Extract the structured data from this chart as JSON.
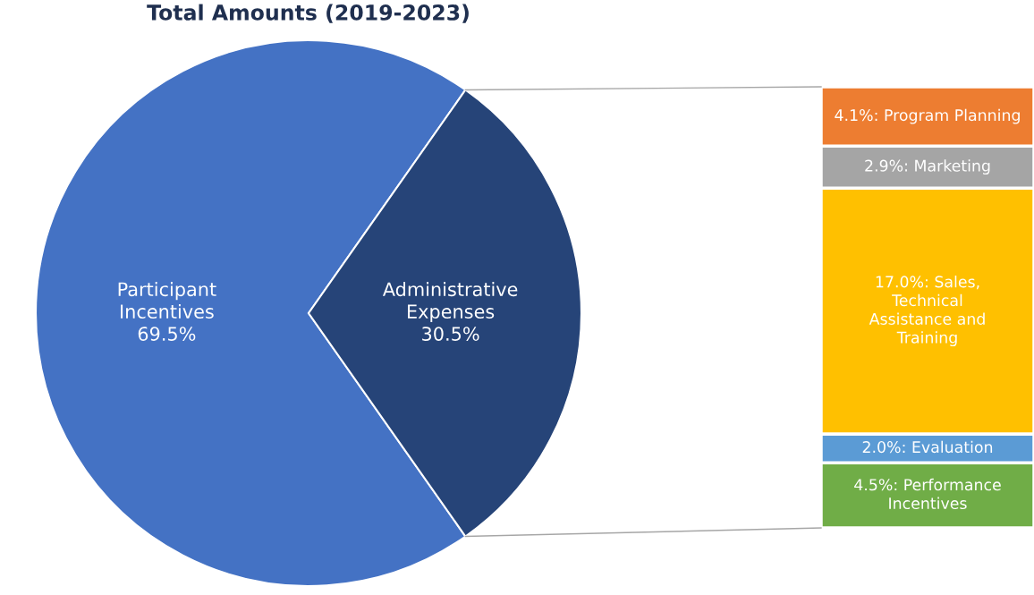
{
  "chart_data": [
    {
      "type": "pie",
      "title": "Total Amounts (2019-2023)",
      "categories": [
        "Participant\nIncentives",
        "Administrative\nExpenses"
      ],
      "values": [
        69.5,
        30.5
      ],
      "colors": [
        "#4472c4",
        "#264478"
      ],
      "value_labels": [
        "69.5%",
        "30.5%"
      ]
    },
    {
      "type": "bar",
      "stacked": true,
      "categories": [
        null
      ],
      "series": [
        {
          "color": "#70ad47",
          "values": [
            4.5
          ],
          "value_labels": [
            "4.5%: Performance\nIncentives"
          ]
        },
        {
          "color": "#5b9bd5",
          "values": [
            2.0
          ],
          "value_labels": [
            "2.0%: Evaluation"
          ]
        },
        {
          "color": "#ffc000",
          "values": [
            17.0
          ],
          "value_labels": [
            "17.0%: Sales,\nTechnical\nAssistance and\nTraining"
          ]
        },
        {
          "color": "#a5a5a5",
          "values": [
            2.9
          ],
          "value_labels": [
            "2.9%: Marketing"
          ]
        },
        {
          "color": "#ed7d31",
          "values": [
            4.1
          ],
          "value_labels": [
            "4.1%: Program Planning"
          ]
        }
      ]
    }
  ]
}
